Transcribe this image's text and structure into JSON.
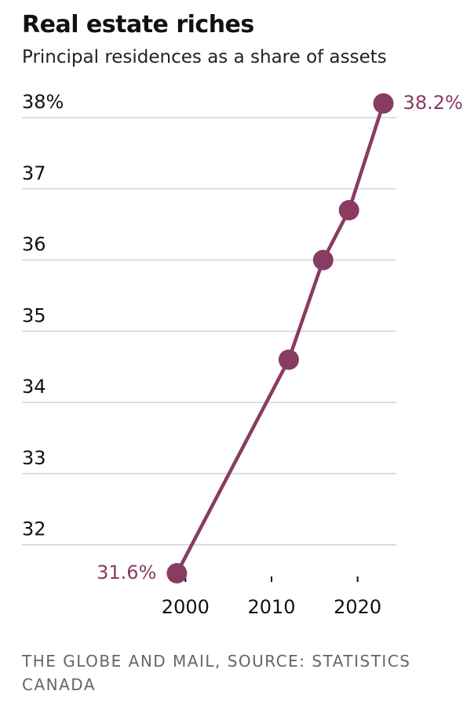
{
  "chart_data": {
    "type": "line",
    "title": "Real estate riches",
    "subtitle": "Principal residences as a share of assets",
    "source": "THE GLOBE AND MAIL, SOURCE: STATISTICS CANADA",
    "x": [
      1999,
      2012,
      2016,
      2019,
      2023
    ],
    "series": [
      {
        "name": "Principal residences share of assets",
        "color": "#8a3b62",
        "values": [
          31.6,
          34.6,
          36.0,
          36.7,
          38.2
        ],
        "value_labels": [
          "31.6%",
          null,
          null,
          null,
          "38.2%"
        ]
      }
    ],
    "xlim": [
      1981,
      2024.5
    ],
    "xticks": [
      2000,
      2010,
      2020
    ],
    "ylim": [
      31.5,
      38.3
    ],
    "yticks": [
      32,
      33,
      34,
      35,
      36,
      37,
      {
        "value": 38,
        "label": "38%"
      }
    ],
    "grid": true
  }
}
